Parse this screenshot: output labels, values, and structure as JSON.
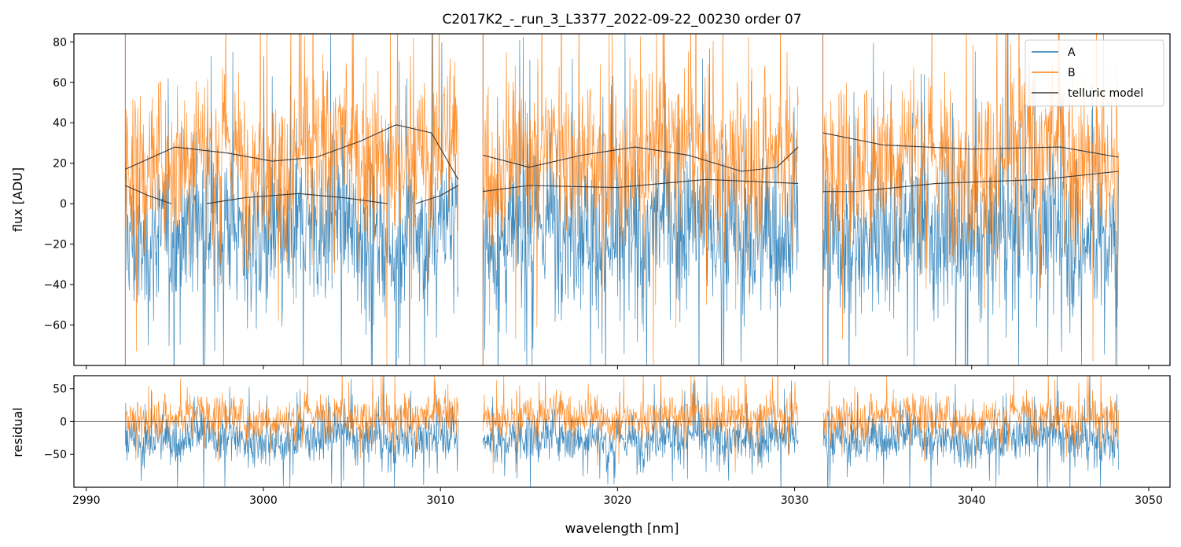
{
  "chart_data": [
    {
      "type": "line",
      "panel": "flux",
      "title": "C2017K2_-_run_3_L3377_2022-09-22_00230  order 07",
      "xlabel": "",
      "ylabel": "flux [ADU]",
      "xlim": [
        2989.3,
        3051.2
      ],
      "ylim": [
        -80,
        84
      ],
      "grid": false,
      "legend_position": "top-right",
      "x_ticks": [
        2990,
        3000,
        3010,
        3020,
        3030,
        3040,
        3050
      ],
      "y_ticks": [
        -60,
        -40,
        -20,
        0,
        20,
        40,
        60,
        80
      ],
      "y_tick_labels": [
        "−60",
        "−40",
        "−20",
        "0",
        "20",
        "40",
        "60",
        "80"
      ],
      "segments": [
        [
          2992.2,
          3011.0
        ],
        [
          3012.4,
          3030.2
        ],
        [
          3031.6,
          3048.3
        ]
      ],
      "series": [
        {
          "name": "A",
          "color": "#1f77b4",
          "kind": "noisy",
          "center": -14,
          "spread": 30
        },
        {
          "name": "B",
          "color": "#ff7f0e",
          "kind": "noisy",
          "center": 24,
          "spread": 30
        },
        {
          "name": "telluric model",
          "color": "#3a3a3a",
          "kind": "model",
          "upper_x": [
            2992.2,
            2995.0,
            2998.0,
            3000.5,
            3003.0,
            3005.5,
            3007.5,
            3009.5,
            3011.0,
            3012.4,
            3015.0,
            3018.0,
            3021.0,
            3024.0,
            3027.0,
            3029.0,
            3030.2,
            3031.6,
            3035.0,
            3040.0,
            3045.0,
            3048.3
          ],
          "upper_y": [
            17,
            28,
            25,
            21,
            23,
            31,
            39,
            35,
            12,
            24,
            18,
            24,
            28,
            24,
            16,
            18,
            28,
            35,
            29,
            27,
            28,
            23
          ],
          "lower_x": [
            2992.2,
            2993.5,
            2994.8,
            2996.8,
            2999.0,
            3002.0,
            3004.5,
            3007.0,
            3008.6,
            3010.0,
            3011.0,
            3012.4,
            3015.0,
            3020.0,
            3025.0,
            3030.2,
            3031.6,
            3033.5,
            3038.0,
            3044.0,
            3048.3
          ],
          "lower_y": [
            9,
            4,
            0,
            0,
            3,
            5,
            3,
            0,
            0,
            4,
            9,
            6,
            9,
            8,
            12,
            10,
            6,
            6,
            10,
            12,
            16
          ]
        }
      ]
    },
    {
      "type": "line",
      "panel": "residual",
      "xlabel": "wavelength [nm]",
      "ylabel": "residual",
      "xlim": [
        2989.3,
        3051.2
      ],
      "ylim": [
        -100,
        70
      ],
      "grid": false,
      "x_ticks": [
        2990,
        3000,
        3010,
        3020,
        3030,
        3040,
        3050
      ],
      "x_tick_labels": [
        "2990",
        "3000",
        "3010",
        "3020",
        "3030",
        "3040",
        "3050"
      ],
      "y_ticks": [
        -50,
        0,
        50
      ],
      "y_tick_labels": [
        "−50",
        "0",
        "50"
      ],
      "zero_line": 0,
      "series": [
        {
          "name": "A",
          "color": "#1f77b4",
          "kind": "noisy",
          "center": -25,
          "spread": 28
        },
        {
          "name": "B",
          "color": "#ff7f0e",
          "kind": "noisy",
          "center": 8,
          "spread": 24
        }
      ]
    }
  ]
}
